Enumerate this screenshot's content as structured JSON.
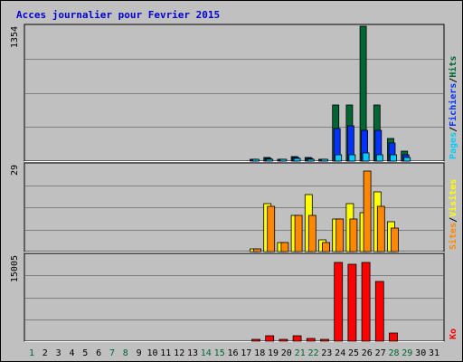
{
  "chart_data": {
    "type": "bar",
    "title": "Acces journalier pour Fevrier 2015",
    "categories": [
      "1",
      "2",
      "3",
      "4",
      "5",
      "6",
      "7",
      "8",
      "9",
      "10",
      "11",
      "12",
      "13",
      "14",
      "15",
      "16",
      "17",
      "18",
      "19",
      "20",
      "21",
      "22",
      "23",
      "24",
      "25",
      "26",
      "27",
      "28",
      "29",
      "30",
      "31"
    ],
    "weekend_days": [
      "1",
      "7",
      "8",
      "14",
      "15",
      "21",
      "22",
      "28",
      "29"
    ],
    "colors": {
      "background": "#c0c0c0",
      "frame": "#ffffff",
      "title": "#0000cc",
      "hits": "#006633",
      "files": "#0033ff",
      "pages": "#00ccff",
      "visits": "#ffff00",
      "sites": "#ff8800",
      "kbytes": "#ff0000",
      "weekday_label": "#000000",
      "weekend_label": "#006633"
    },
    "panels": [
      {
        "id": "traffic",
        "ytick": "1354",
        "ylim": [
          0,
          1354
        ],
        "legend": [
          "Pages",
          "/",
          "Fichiers",
          "/",
          "Hits"
        ],
        "legend_colors": [
          "#00ccff",
          "#000000",
          "#0033ff",
          "#000000",
          "#006633"
        ],
        "series": [
          {
            "name": "Hits",
            "color": "#006633",
            "values": [
              0,
              0,
              0,
              0,
              0,
              0,
              0,
              0,
              0,
              0,
              0,
              0,
              0,
              0,
              0,
              0,
              0,
              10,
              35,
              15,
              45,
              35,
              20,
              560,
              560,
              1354,
              560,
              230,
              100,
              0,
              0
            ]
          },
          {
            "name": "Fichiers",
            "color": "#0033ff",
            "values": [
              0,
              0,
              0,
              0,
              0,
              0,
              0,
              0,
              0,
              0,
              0,
              0,
              0,
              0,
              0,
              0,
              0,
              5,
              25,
              5,
              35,
              25,
              10,
              330,
              355,
              310,
              310,
              180,
              60,
              0,
              0
            ]
          },
          {
            "name": "Pages",
            "color": "#00ccff",
            "values": [
              0,
              0,
              0,
              0,
              0,
              0,
              0,
              0,
              0,
              0,
              0,
              0,
              0,
              0,
              0,
              0,
              0,
              3,
              15,
              3,
              25,
              20,
              5,
              60,
              60,
              80,
              60,
              60,
              40,
              0,
              0
            ]
          }
        ]
      },
      {
        "id": "visits",
        "ytick": "29",
        "ylim": [
          0,
          29
        ],
        "legend": [
          "Sites",
          "/",
          "Visites"
        ],
        "legend_colors": [
          "#ff8800",
          "#000000",
          "#ffff00"
        ],
        "series": [
          {
            "name": "Visites",
            "color": "#ffff00",
            "values": [
              0,
              0,
              0,
              0,
              0,
              0,
              0,
              0,
              0,
              0,
              0,
              0,
              0,
              0,
              0,
              0,
              0,
              1,
              16,
              3,
              12,
              19,
              4,
              11,
              16,
              13,
              20,
              10,
              0,
              0,
              0
            ]
          },
          {
            "name": "Sites",
            "color": "#ff8800",
            "values": [
              0,
              0,
              0,
              0,
              0,
              0,
              0,
              0,
              0,
              0,
              0,
              0,
              0,
              0,
              0,
              0,
              0,
              1,
              15,
              3,
              12,
              12,
              3,
              11,
              11,
              27,
              15,
              8,
              0,
              0,
              0
            ]
          }
        ]
      },
      {
        "id": "kbytes",
        "ytick": "15005",
        "ylim": [
          0,
          15005
        ],
        "legend": [
          "Ko"
        ],
        "legend_colors": [
          "#ff0000"
        ],
        "series": [
          {
            "name": "Ko",
            "color": "#ff0000",
            "values": [
              0,
              0,
              0,
              0,
              0,
              0,
              0,
              0,
              0,
              0,
              0,
              0,
              0,
              0,
              0,
              0,
              0,
              200,
              900,
              200,
              1000,
              400,
              200,
              13800,
              13400,
              13800,
              10500,
              1400,
              0,
              0,
              0
            ]
          }
        ]
      }
    ]
  }
}
